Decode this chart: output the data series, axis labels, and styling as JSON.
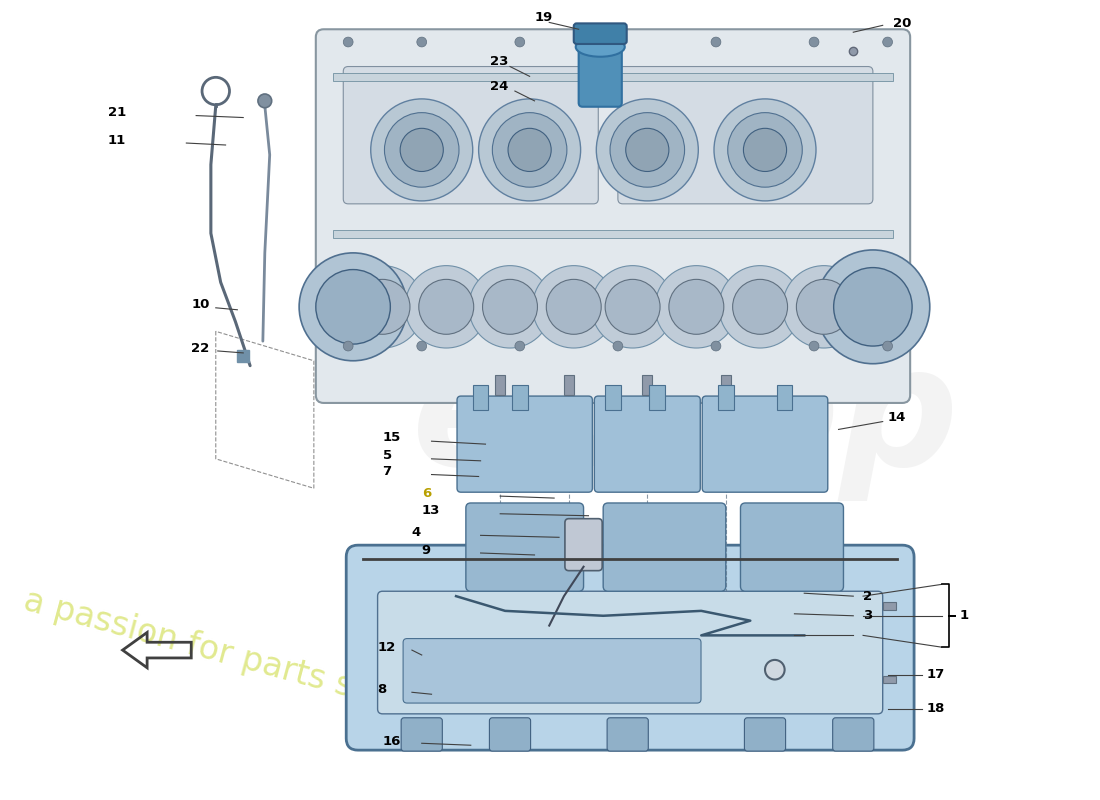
{
  "bg_color": "#ffffff",
  "engine_face_color": "#dde4ea",
  "engine_edge_color": "#8896a0",
  "oilpan_color": "#b8d4e8",
  "oilpan_edge": "#4a7090",
  "baffle_color": "#a0c0d8",
  "baffle_edge": "#4a7090",
  "dipstick_color": "#5a6878",
  "label_color": "#000000",
  "label6_color": "#b8a000",
  "line_color": "#333333",
  "watermark_color": "#c8c8c8",
  "watermark2_color": "#d4e060",
  "part_numbers": [
    "1",
    "2",
    "3",
    "4",
    "5",
    "6",
    "7",
    "8",
    "9",
    "10",
    "11",
    "12",
    "13",
    "14",
    "15",
    "16",
    "17",
    "18",
    "19",
    "20",
    "21",
    "22",
    "23",
    "24"
  ]
}
